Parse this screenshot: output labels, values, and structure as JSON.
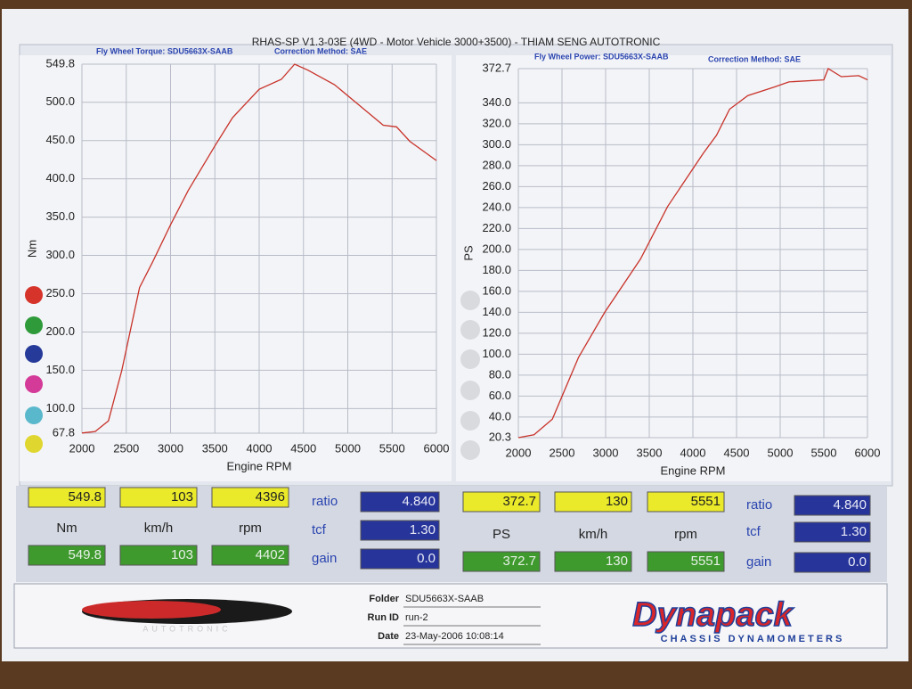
{
  "header": {
    "title": "RHAS-SP V1.3-03E  (4WD - Motor Vehicle 3000+3500) - THIAM SENG AUTOTRONIC"
  },
  "chart_data": [
    {
      "type": "line",
      "subtitle": "Fly Wheel Torque: SDU5663X-SAAB",
      "note": "Correction Method: SAE",
      "x_label": "Engine RPM",
      "y_label": "Nm",
      "color": "#c8322a",
      "grid": true,
      "xlim": [
        2000,
        6000
      ],
      "xticks": [
        2000,
        2500,
        3000,
        3500,
        4000,
        4500,
        5000,
        5500,
        6000
      ],
      "ylim": [
        67.8,
        549.8
      ],
      "yticks": [
        67.8,
        {
          "value": 100,
          "label": "100.0"
        },
        {
          "value": 150,
          "label": "150.0"
        },
        {
          "value": 200,
          "label": "200.0"
        },
        {
          "value": 250,
          "label": "250.0"
        },
        {
          "value": 300,
          "label": "300.0"
        },
        {
          "value": 350,
          "label": "350.0"
        },
        {
          "value": 400,
          "label": "400.0"
        },
        {
          "value": 450,
          "label": "450.0"
        },
        {
          "value": 500,
          "label": "500.0"
        },
        549.8
      ],
      "x": [
        2000,
        2150,
        2300,
        2450,
        2650,
        2800,
        3000,
        3200,
        3500,
        3700,
        4000,
        4250,
        4400,
        4550,
        4850,
        5100,
        5400,
        5550,
        5700,
        6000
      ],
      "values": [
        68,
        70,
        84,
        150,
        258,
        292,
        340,
        385,
        443,
        480,
        517,
        530,
        549.8,
        542,
        523,
        499,
        470,
        468,
        449,
        424
      ]
    },
    {
      "type": "line",
      "subtitle": "Fly Wheel Power: SDU5663X-SAAB",
      "note": "Correction Method: SAE",
      "x_label": "Engine RPM",
      "y_label": "PS",
      "color": "#c8322a",
      "grid": true,
      "xlim": [
        2000,
        6000
      ],
      "xticks": [
        2000,
        2500,
        3000,
        3500,
        4000,
        4500,
        5000,
        5500,
        6000
      ],
      "ylim": [
        20.3,
        372.7
      ],
      "yticks": [
        20.3,
        {
          "value": 40,
          "label": "40.0"
        },
        {
          "value": 60,
          "label": "60.0"
        },
        {
          "value": 80,
          "label": "80.0"
        },
        {
          "value": 100,
          "label": "100.0"
        },
        {
          "value": 120,
          "label": "120.0"
        },
        {
          "value": 140,
          "label": "140.0"
        },
        {
          "value": 160,
          "label": "160.0"
        },
        {
          "value": 180,
          "label": "180.0"
        },
        {
          "value": 200,
          "label": "200.0"
        },
        {
          "value": 220,
          "label": "220.0"
        },
        {
          "value": 240,
          "label": "240.0"
        },
        {
          "value": 260,
          "label": "260.0"
        },
        {
          "value": 280,
          "label": "280.0"
        },
        {
          "value": 300,
          "label": "300.0"
        },
        {
          "value": 320,
          "label": "320.0"
        },
        {
          "value": 340,
          "label": "340.0"
        },
        372.7
      ],
      "x": [
        2000,
        2180,
        2390,
        2690,
        2990,
        3400,
        3710,
        4120,
        4270,
        4420,
        4630,
        4930,
        5100,
        5500,
        5550,
        5700,
        5900,
        6000
      ],
      "values": [
        20.3,
        23,
        38,
        97,
        140,
        191,
        241,
        292,
        309,
        334,
        347,
        355,
        360,
        362,
        372.7,
        365,
        366,
        362
      ]
    }
  ],
  "readouts": [
    {
      "top": [
        "549.8",
        "103",
        "4396"
      ],
      "units": [
        "Nm",
        "km/h",
        "rpm"
      ],
      "bottom": [
        "549.8",
        "103",
        "4402"
      ],
      "params": [
        {
          "label": "ratio",
          "value": "4.840"
        },
        {
          "label": "tcf",
          "value": "1.30"
        },
        {
          "label": "gain",
          "value": "0.0"
        }
      ]
    },
    {
      "top": [
        "372.7",
        "130",
        "5551"
      ],
      "units": [
        "PS",
        "km/h",
        "rpm"
      ],
      "bottom": [
        "372.7",
        "130",
        "5551"
      ],
      "params": [
        {
          "label": "ratio",
          "value": "4.840"
        },
        {
          "label": "tcf",
          "value": "1.30"
        },
        {
          "label": "gain",
          "value": "0.0"
        }
      ]
    }
  ],
  "footer": {
    "fields": [
      {
        "label": "Folder",
        "value": "SDU5663X-SAAB"
      },
      {
        "label": "Run ID",
        "value": "run-2"
      },
      {
        "label": "Date",
        "value": "23-May-2006  10:08:14"
      }
    ],
    "left_logo": "AUTOTRONIC",
    "brand": "Dynapack",
    "brand_sub": "CHASSIS  DYNAMOMETERS"
  }
}
